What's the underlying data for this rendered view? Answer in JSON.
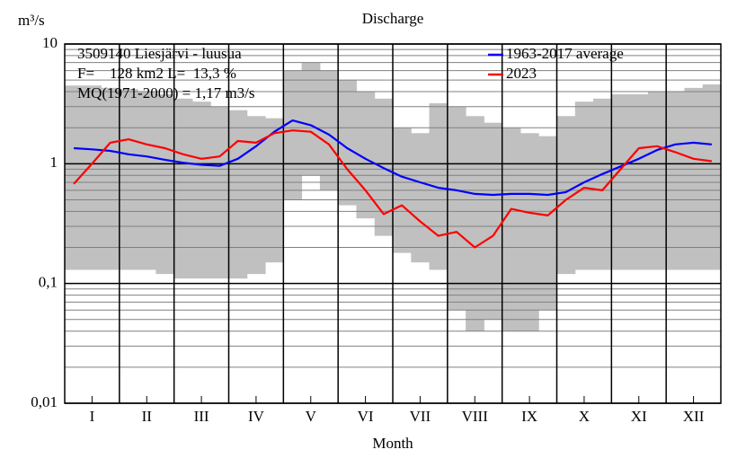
{
  "chart_data": {
    "type": "line",
    "title": "Discharge",
    "xlabel": "Month",
    "ylabel": "m³/s",
    "annotations": [
      "3509140 Liesjärvi - luusua",
      "F=    128 km2 L=  13,3 %",
      "MQ(1971-2000) = 1,17 m3/s"
    ],
    "log_y": true,
    "grid": true,
    "legend": "top-right",
    "ylim": [
      0.01,
      10
    ],
    "yticks": [
      {
        "value": 0.01,
        "label": "0,01"
      },
      {
        "value": 0.1,
        "label": "0,1"
      },
      1,
      10
    ],
    "yminor": [
      0.02,
      0.03,
      0.04,
      0.05,
      0.06,
      0.07,
      0.08,
      0.09,
      0.2,
      0.3,
      0.4,
      0.5,
      0.6,
      0.7,
      0.8,
      0.9,
      2,
      3,
      4,
      5,
      6,
      7,
      8,
      9
    ],
    "categories": [
      null,
      "I",
      null,
      null,
      "II",
      null,
      null,
      "III",
      null,
      null,
      "IV",
      null,
      null,
      "V",
      null,
      null,
      "VI",
      null,
      null,
      "VII",
      null,
      null,
      "VIII",
      null,
      null,
      "IX",
      null,
      null,
      "X",
      null,
      null,
      "XI",
      null,
      null,
      "XII",
      null
    ],
    "range": {
      "color": "#c0c0c0",
      "min": [
        0.13,
        0.13,
        0.13,
        0.13,
        0.13,
        0.12,
        0.11,
        0.11,
        0.11,
        0.11,
        0.12,
        0.15,
        0.5,
        0.8,
        0.6,
        0.45,
        0.35,
        0.25,
        0.18,
        0.15,
        0.13,
        0.06,
        0.04,
        0.05,
        0.04,
        0.04,
        0.06,
        0.12,
        0.13,
        0.13,
        0.13,
        0.13,
        0.13,
        0.13,
        0.13,
        0.13
      ],
      "max": [
        4.5,
        4.5,
        4.3,
        4.2,
        4,
        3.8,
        3.5,
        3.3,
        3,
        2.8,
        2.5,
        2.4,
        6,
        7,
        6,
        5,
        4,
        3.5,
        2,
        1.8,
        3.2,
        3,
        2.5,
        2.2,
        2,
        1.8,
        1.7,
        2.5,
        3.3,
        3.5,
        3.8,
        3.8,
        4,
        4,
        4.3,
        4.6
      ]
    },
    "series": [
      {
        "name": "1963-2017 average",
        "color": "#0000ff",
        "values": [
          1.35,
          1.32,
          1.28,
          1.2,
          1.15,
          1.08,
          1.02,
          0.98,
          0.96,
          1.1,
          1.4,
          1.85,
          2.3,
          2.1,
          1.75,
          1.35,
          1.1,
          0.92,
          0.78,
          0.7,
          0.63,
          0.6,
          0.56,
          0.55,
          0.56,
          0.56,
          0.55,
          0.58,
          0.7,
          0.82,
          0.95,
          1.1,
          1.3,
          1.45,
          1.5,
          1.45
        ]
      },
      {
        "name": "2023",
        "color": "#ff0000",
        "values": [
          0.68,
          1.0,
          1.5,
          1.6,
          1.45,
          1.35,
          1.2,
          1.1,
          1.15,
          1.55,
          1.5,
          1.8,
          1.9,
          1.85,
          1.45,
          0.9,
          0.6,
          0.38,
          0.45,
          0.33,
          0.25,
          0.27,
          0.2,
          0.25,
          0.42,
          0.39,
          0.37,
          0.5,
          0.63,
          0.6,
          0.9,
          1.35,
          1.4,
          1.25,
          1.1,
          1.05
        ]
      }
    ]
  }
}
